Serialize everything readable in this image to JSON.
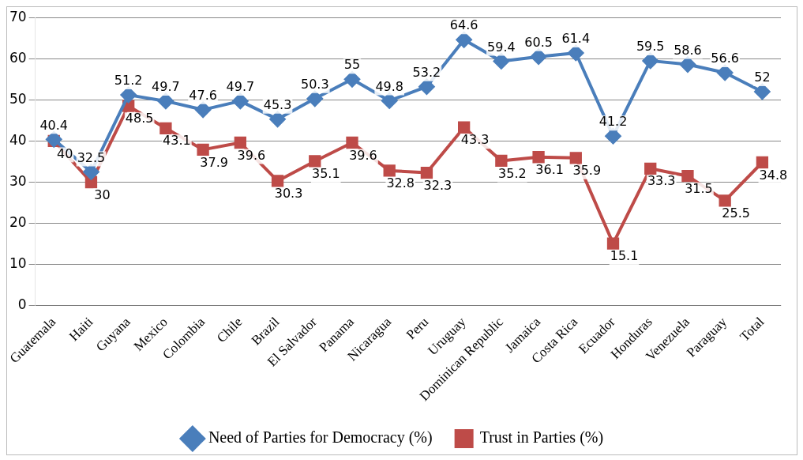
{
  "chart_data": {
    "type": "line",
    "categories": [
      "Guatemala",
      "Haiti",
      "Guyana",
      "Mexico",
      "Colombia",
      "Chile",
      "Brazil",
      "El Salvador",
      "Panama",
      "Nicaragua",
      "Peru",
      "Uruguay",
      "Dominican Republic",
      "Jamaica",
      "Costa Rica",
      "Ecuador",
      "Honduras",
      "Venezuela",
      "Paraguay",
      "Total"
    ],
    "series": [
      {
        "name": "Need of Parties for Democracy (%)",
        "color": "#4a7ebb",
        "marker": "diamond",
        "values": [
          40.4,
          32.5,
          51.2,
          49.7,
          47.6,
          49.7,
          45.3,
          50.3,
          55,
          49.8,
          53.2,
          64.6,
          59.4,
          60.5,
          61.4,
          41.2,
          59.5,
          58.6,
          56.6,
          52
        ]
      },
      {
        "name": "Trust in Parties (%)",
        "color": "#be4b48",
        "marker": "square",
        "values": [
          40,
          30,
          48.5,
          43.1,
          37.9,
          39.6,
          30.3,
          35.1,
          39.6,
          32.8,
          32.3,
          43.3,
          35.2,
          36.1,
          35.9,
          15.1,
          33.3,
          31.5,
          25.5,
          34.8
        ]
      }
    ],
    "ylim": [
      0,
      70
    ],
    "yticks": [
      0,
      10,
      20,
      30,
      40,
      50,
      60,
      70
    ],
    "grid": "y",
    "legend": "bottom",
    "data_labels": true,
    "line_style": "solid"
  }
}
